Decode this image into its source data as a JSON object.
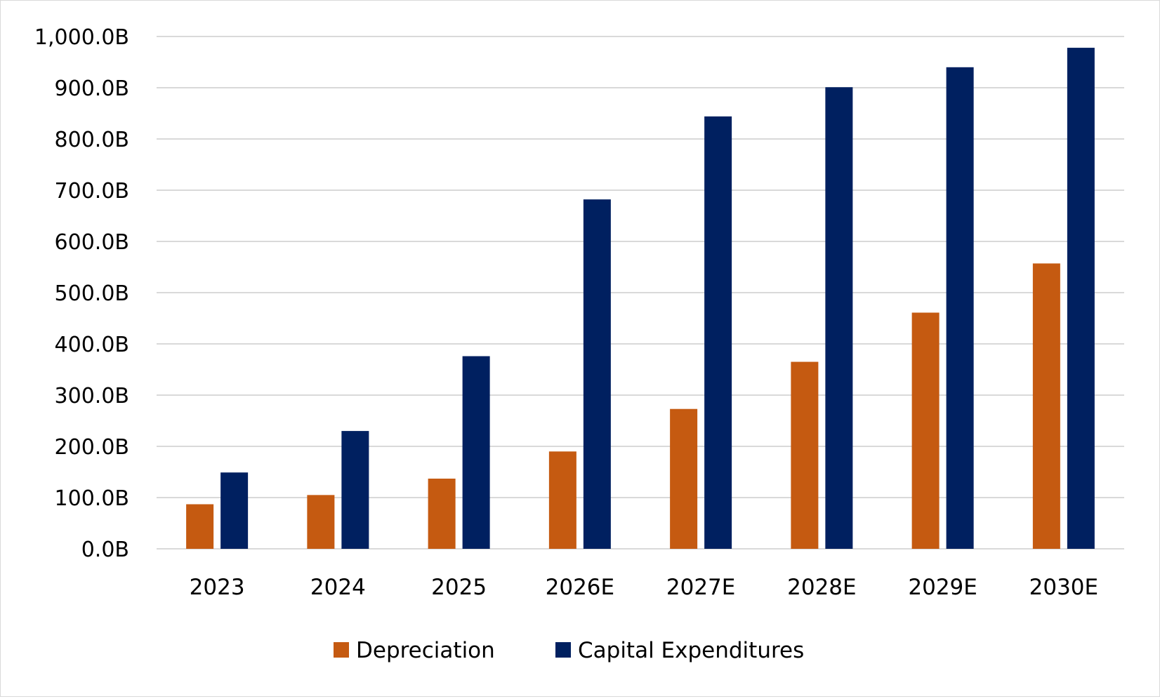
{
  "chart_data": {
    "type": "bar",
    "title": "",
    "xlabel": "",
    "ylabel": "",
    "categories": [
      "2023",
      "2024",
      "2025",
      "2026E",
      "2027E",
      "2028E",
      "2029E",
      "2030E"
    ],
    "series": [
      {
        "name": "Depreciation",
        "color": "#c55a11",
        "values": [
          87,
          105,
          137,
          190,
          273,
          365,
          461,
          557
        ]
      },
      {
        "name": "Capital Expenditures",
        "color": "#002060",
        "values": [
          149,
          230,
          376,
          682,
          844,
          901,
          940,
          978
        ]
      }
    ],
    "ylim": [
      0,
      1000
    ],
    "yticks": [
      0,
      100,
      200,
      300,
      400,
      500,
      600,
      700,
      800,
      900,
      1000
    ],
    "ytick_labels": [
      "0.0B",
      "100.0B",
      "200.0B",
      "300.0B",
      "400.0B",
      "500.0B",
      "600.0B",
      "700.0B",
      "800.0B",
      "900.0B",
      "1,000.0B"
    ],
    "grid": true,
    "legend_position": "bottom"
  }
}
